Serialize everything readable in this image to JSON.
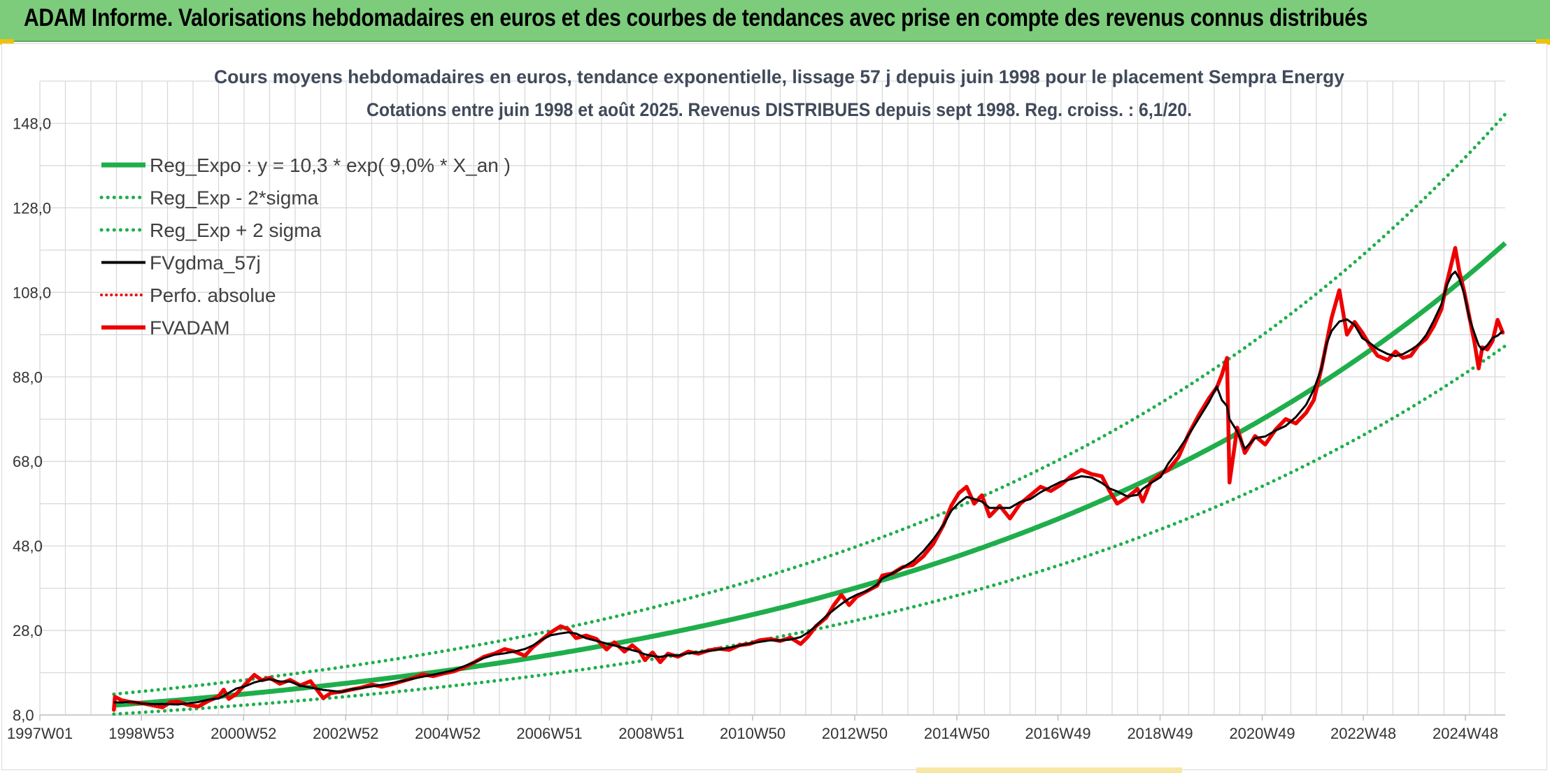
{
  "header": {
    "title": "ADAM Informe. Valorisations hebdomadaires en euros et des courbes de tendances avec prise en compte des revenus connus distribués"
  },
  "colors": {
    "banner": "#7ccc7c",
    "reg_expo": "#1fae4b",
    "sigma": "#1fae4b",
    "gdma": "#000000",
    "fvadam": "#ee0000",
    "perfo": "#ee0000",
    "grid": "#d9d9d9"
  },
  "chart_data": {
    "type": "line",
    "title": "Cours moyens hebdomadaires en euros, tendance exponentielle, lissage 57 j depuis juin 1998 pour le placement Sempra Energy",
    "subtitle": "Cotations entre juin 1998 et août 2025. Revenus DISTRIBUES depuis sept 1998. Reg. croiss. : 6,1/20.",
    "xlabel": "",
    "ylabel": "",
    "ylim": [
      8.0,
      158.0
    ],
    "yticks": [
      "8,0",
      "28,0",
      "48,0",
      "68,0",
      "88,0",
      "108,0",
      "128,0",
      "148,0"
    ],
    "xlim": [
      1997.0,
      2025.7
    ],
    "xticks": [
      {
        "x": 1997.0,
        "label": "1997W01"
      },
      {
        "x": 1998.99,
        "label": "1998W53"
      },
      {
        "x": 2000.99,
        "label": "2000W52"
      },
      {
        "x": 2002.99,
        "label": "2002W52"
      },
      {
        "x": 2004.99,
        "label": "2004W52"
      },
      {
        "x": 2006.98,
        "label": "2006W51"
      },
      {
        "x": 2008.98,
        "label": "2008W51"
      },
      {
        "x": 2010.96,
        "label": "2010W50"
      },
      {
        "x": 2012.96,
        "label": "2012W50"
      },
      {
        "x": 2014.96,
        "label": "2014W50"
      },
      {
        "x": 2016.94,
        "label": "2016W49"
      },
      {
        "x": 2018.94,
        "label": "2018W49"
      },
      {
        "x": 2020.94,
        "label": "2020W49"
      },
      {
        "x": 2022.92,
        "label": "2022W48"
      },
      {
        "x": 2024.92,
        "label": "2024W48"
      }
    ],
    "grid": true,
    "legend_position": "top-left",
    "regression": {
      "a": 10.3,
      "rate": 0.09,
      "x0": 1998.45,
      "x_end": 2025.7,
      "sigma_factor": 1.255
    },
    "series": [
      {
        "name": "Reg_Expo : y = 10,3 * exp( 9,0% *  X_an )",
        "style": "solid-thick",
        "color": "#1fae4b"
      },
      {
        "name": "Reg_Exp - 2*sigma",
        "style": "dotted",
        "color": "#1fae4b"
      },
      {
        "name": "Reg_Exp + 2 sigma",
        "style": "dotted",
        "color": "#1fae4b"
      },
      {
        "name": "FVgdma_57j",
        "style": "solid",
        "color": "#000000"
      },
      {
        "name": "Perfo. absolue",
        "style": "dotted",
        "color": "#ee0000"
      },
      {
        "name": "FVADAM",
        "style": "solid-thick",
        "color": "#ee0000",
        "points": [
          [
            1998.45,
            9.2
          ],
          [
            1998.47,
            12.3
          ],
          [
            1998.6,
            11.5
          ],
          [
            1998.8,
            11.0
          ],
          [
            1999.0,
            10.8
          ],
          [
            1999.2,
            10.3
          ],
          [
            1999.4,
            9.8
          ],
          [
            1999.55,
            11.0
          ],
          [
            1999.7,
            11.2
          ],
          [
            1999.9,
            10.4
          ],
          [
            2000.1,
            10.0
          ],
          [
            2000.3,
            11.3
          ],
          [
            2000.5,
            12.4
          ],
          [
            2000.6,
            14.0
          ],
          [
            2000.7,
            11.8
          ],
          [
            2000.85,
            13.0
          ],
          [
            2001.0,
            15.0
          ],
          [
            2001.2,
            17.5
          ],
          [
            2001.35,
            16.2
          ],
          [
            2001.5,
            16.8
          ],
          [
            2001.7,
            15.4
          ],
          [
            2001.9,
            16.3
          ],
          [
            2002.1,
            15.0
          ],
          [
            2002.3,
            16.0
          ],
          [
            2002.55,
            12.0
          ],
          [
            2002.7,
            13.2
          ],
          [
            2002.9,
            13.5
          ],
          [
            2003.1,
            14.0
          ],
          [
            2003.3,
            14.5
          ],
          [
            2003.5,
            15.2
          ],
          [
            2003.7,
            14.7
          ],
          [
            2003.9,
            15.3
          ],
          [
            2004.1,
            16.0
          ],
          [
            2004.3,
            16.7
          ],
          [
            2004.5,
            17.6
          ],
          [
            2004.7,
            17.2
          ],
          [
            2004.9,
            17.8
          ],
          [
            2005.1,
            18.3
          ],
          [
            2005.3,
            19.2
          ],
          [
            2005.5,
            20.4
          ],
          [
            2005.7,
            21.8
          ],
          [
            2005.9,
            22.5
          ],
          [
            2006.1,
            23.6
          ],
          [
            2006.3,
            23.0
          ],
          [
            2006.5,
            22.0
          ],
          [
            2006.65,
            24.0
          ],
          [
            2006.8,
            25.5
          ],
          [
            2007.0,
            27.5
          ],
          [
            2007.2,
            29.0
          ],
          [
            2007.35,
            28.3
          ],
          [
            2007.5,
            26.2
          ],
          [
            2007.7,
            26.8
          ],
          [
            2007.9,
            26.0
          ],
          [
            2008.1,
            23.5
          ],
          [
            2008.25,
            25.2
          ],
          [
            2008.45,
            23.0
          ],
          [
            2008.6,
            24.5
          ],
          [
            2008.75,
            23.0
          ],
          [
            2008.85,
            21.0
          ],
          [
            2009.0,
            22.8
          ],
          [
            2009.15,
            20.5
          ],
          [
            2009.3,
            22.5
          ],
          [
            2009.5,
            21.8
          ],
          [
            2009.7,
            23.0
          ],
          [
            2009.9,
            22.5
          ],
          [
            2010.1,
            23.3
          ],
          [
            2010.3,
            23.7
          ],
          [
            2010.5,
            23.4
          ],
          [
            2010.7,
            24.5
          ],
          [
            2010.9,
            24.8
          ],
          [
            2011.1,
            25.7
          ],
          [
            2011.3,
            26.0
          ],
          [
            2011.5,
            25.5
          ],
          [
            2011.7,
            26.3
          ],
          [
            2011.9,
            24.8
          ],
          [
            2012.05,
            26.6
          ],
          [
            2012.2,
            29.0
          ],
          [
            2012.4,
            31.0
          ],
          [
            2012.55,
            34.0
          ],
          [
            2012.7,
            36.4
          ],
          [
            2012.85,
            34.0
          ],
          [
            2013.0,
            36.0
          ],
          [
            2013.2,
            37.3
          ],
          [
            2013.4,
            38.6
          ],
          [
            2013.5,
            41.0
          ],
          [
            2013.7,
            41.5
          ],
          [
            2013.9,
            43.0
          ],
          [
            2014.1,
            43.5
          ],
          [
            2014.3,
            45.5
          ],
          [
            2014.5,
            48.5
          ],
          [
            2014.7,
            53.0
          ],
          [
            2014.85,
            57.5
          ],
          [
            2015.0,
            60.5
          ],
          [
            2015.15,
            62.0
          ],
          [
            2015.3,
            58.0
          ],
          [
            2015.45,
            60.0
          ],
          [
            2015.6,
            55.0
          ],
          [
            2015.8,
            57.5
          ],
          [
            2016.0,
            54.5
          ],
          [
            2016.2,
            58.0
          ],
          [
            2016.4,
            60.0
          ],
          [
            2016.6,
            62.0
          ],
          [
            2016.8,
            61.0
          ],
          [
            2017.0,
            62.5
          ],
          [
            2017.2,
            64.5
          ],
          [
            2017.4,
            66.0
          ],
          [
            2017.6,
            65.0
          ],
          [
            2017.8,
            64.5
          ],
          [
            2017.95,
            61.0
          ],
          [
            2018.1,
            58.0
          ],
          [
            2018.3,
            59.5
          ],
          [
            2018.5,
            61.5
          ],
          [
            2018.6,
            58.5
          ],
          [
            2018.75,
            63.0
          ],
          [
            2018.95,
            65.0
          ],
          [
            2019.1,
            66.0
          ],
          [
            2019.3,
            69.0
          ],
          [
            2019.5,
            74.5
          ],
          [
            2019.7,
            79.0
          ],
          [
            2019.9,
            83.0
          ],
          [
            2020.05,
            85.5
          ],
          [
            2020.15,
            88.5
          ],
          [
            2020.25,
            92.5
          ],
          [
            2020.3,
            63.0
          ],
          [
            2020.45,
            76.0
          ],
          [
            2020.6,
            70.0
          ],
          [
            2020.8,
            74.0
          ],
          [
            2021.0,
            72.0
          ],
          [
            2021.2,
            75.5
          ],
          [
            2021.4,
            78.0
          ],
          [
            2021.6,
            77.0
          ],
          [
            2021.8,
            79.5
          ],
          [
            2021.95,
            82.5
          ],
          [
            2022.1,
            90.0
          ],
          [
            2022.2,
            96.0
          ],
          [
            2022.3,
            102.0
          ],
          [
            2022.45,
            108.5
          ],
          [
            2022.6,
            98.0
          ],
          [
            2022.75,
            101.0
          ],
          [
            2022.9,
            98.5
          ],
          [
            2023.05,
            95.5
          ],
          [
            2023.2,
            93.0
          ],
          [
            2023.4,
            92.0
          ],
          [
            2023.55,
            94.0
          ],
          [
            2023.7,
            92.5
          ],
          [
            2023.85,
            93.0
          ],
          [
            2024.0,
            95.5
          ],
          [
            2024.15,
            97.0
          ],
          [
            2024.3,
            100.0
          ],
          [
            2024.45,
            104.0
          ],
          [
            2024.55,
            110.0
          ],
          [
            2024.65,
            115.0
          ],
          [
            2024.72,
            118.5
          ],
          [
            2024.8,
            113.0
          ],
          [
            2024.9,
            108.0
          ],
          [
            2025.0,
            102.0
          ],
          [
            2025.1,
            96.0
          ],
          [
            2025.18,
            90.0
          ],
          [
            2025.25,
            95.0
          ],
          [
            2025.35,
            94.5
          ],
          [
            2025.45,
            96.5
          ],
          [
            2025.55,
            101.5
          ],
          [
            2025.65,
            98.5
          ]
        ]
      }
    ]
  }
}
